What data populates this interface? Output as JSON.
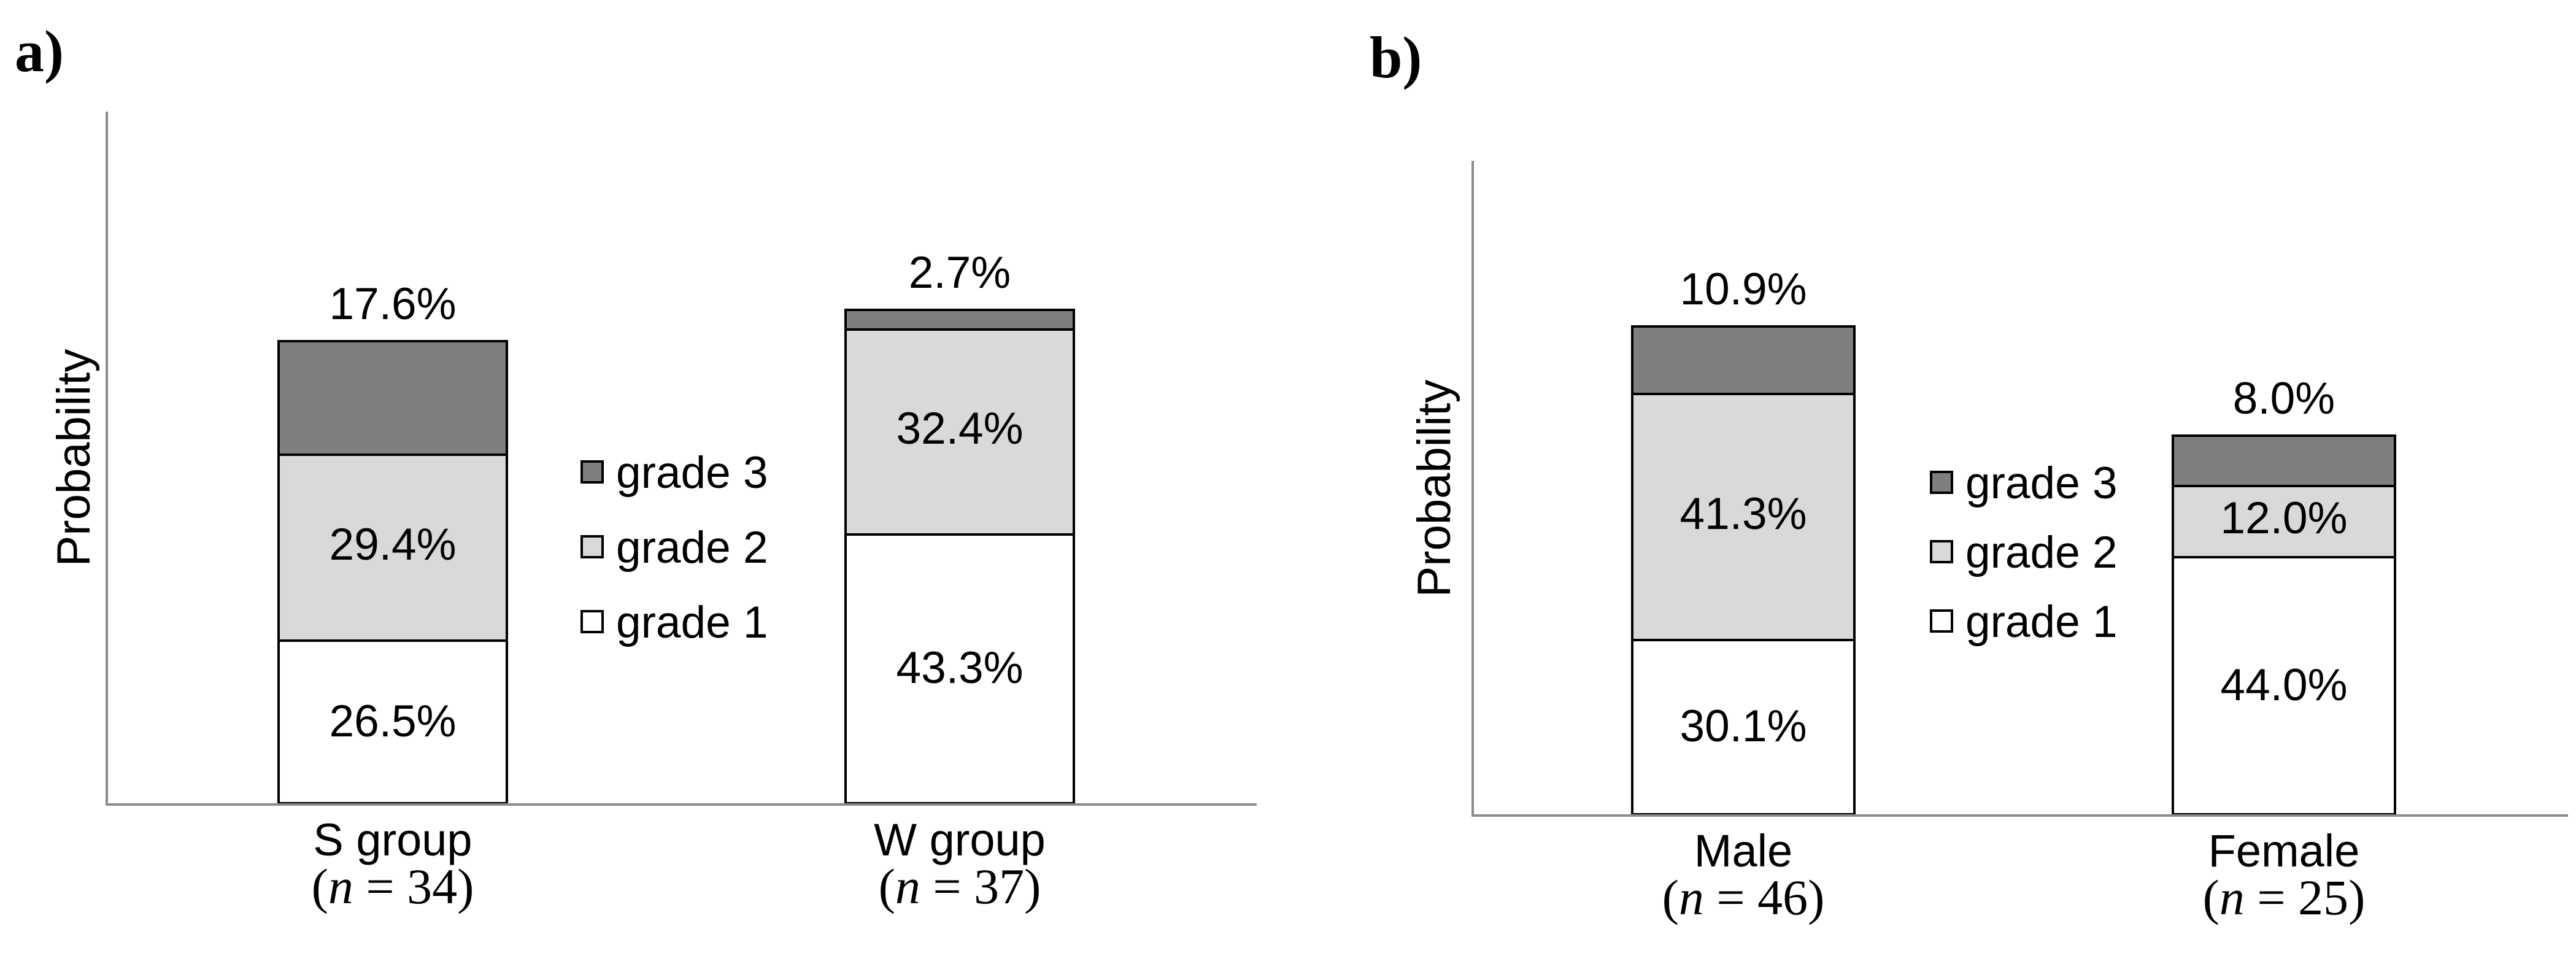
{
  "figure": {
    "description": "Two stacked bar charts showing probability distribution of grades",
    "background": "#ffffff",
    "axis_color": "#8c8c8c",
    "bar_border_color": "#000000"
  },
  "chart_data": [
    {
      "type": "bar",
      "stacked": true,
      "panel_label": "a)",
      "ylabel": "Probability",
      "xlabel": "",
      "categories": [
        "S group",
        "W group"
      ],
      "category_sublabels": [
        "(n = 34)",
        "(n = 37)"
      ],
      "series": [
        {
          "name": "grade 1",
          "values": [
            26.5,
            43.3
          ],
          "color": "#ffffff"
        },
        {
          "name": "grade 2",
          "values": [
            29.4,
            32.4
          ],
          "color": "#d9d9d9"
        },
        {
          "name": "grade 3",
          "values": [
            17.6,
            2.7
          ],
          "color": "#7f7f7f"
        }
      ],
      "value_labels": [
        "26.5%",
        "29.4%",
        "17.6%",
        "43.3%",
        "32.4%",
        "2.7%"
      ],
      "legend_entries": [
        "grade 3",
        "grade 2",
        "grade 1"
      ],
      "legend_position": "inside-right-of-first-bar",
      "y_axis_ticks": "none",
      "grid": false
    },
    {
      "type": "bar",
      "stacked": true,
      "panel_label": "b)",
      "ylabel": "Probability",
      "xlabel": "",
      "categories": [
        "Male",
        "Female"
      ],
      "category_sublabels": [
        "(n = 46)",
        "(n = 25)"
      ],
      "series": [
        {
          "name": "grade 1",
          "values": [
            30.1,
            44.0
          ],
          "color": "#ffffff"
        },
        {
          "name": "grade 2",
          "values": [
            41.3,
            12.0
          ],
          "color": "#d9d9d9"
        },
        {
          "name": "grade 3",
          "values": [
            10.9,
            8.0
          ],
          "color": "#7f7f7f"
        }
      ],
      "value_labels": [
        "30.1%",
        "41.3%",
        "10.9%",
        "44.0%",
        "12.0%",
        "8.0%"
      ],
      "legend_entries": [
        "grade 3",
        "grade 2",
        "grade 1"
      ],
      "legend_position": "inside-right-of-first-bar",
      "y_axis_ticks": "none",
      "grid": false
    }
  ]
}
